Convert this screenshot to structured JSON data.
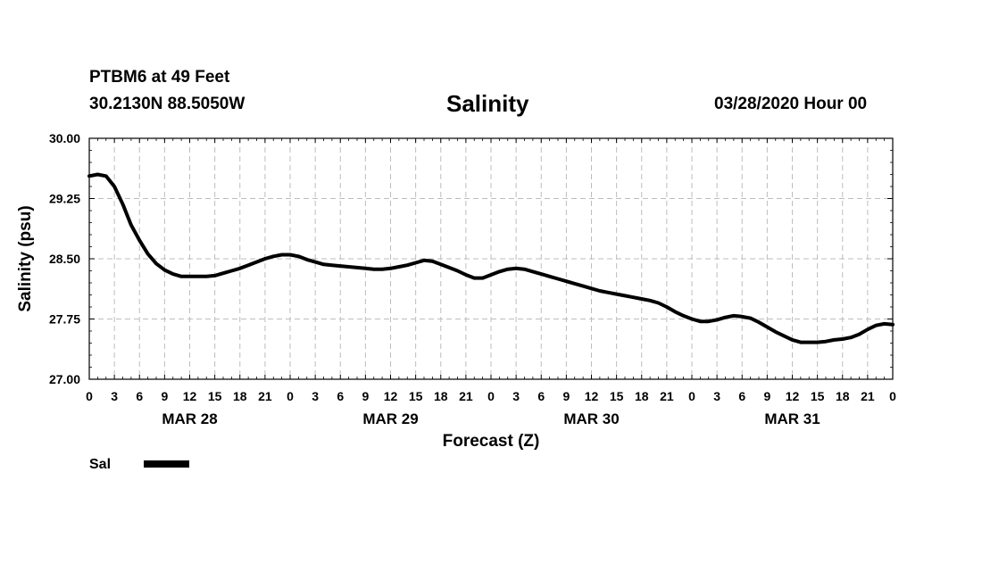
{
  "header": {
    "station": "PTBM6 at 49 Feet",
    "coordinates": "30.2130N 88.5050W",
    "title": "Salinity",
    "datetime": "03/28/2020 Hour 00"
  },
  "chart_data": {
    "type": "line",
    "title": "Salinity",
    "xlabel": "Forecast (Z)",
    "ylabel": "Salinity (psu)",
    "ylim": [
      27.0,
      30.0
    ],
    "yticks": [
      "30.00",
      "29.25",
      "28.50",
      "27.75",
      "27.00"
    ],
    "xlim": [
      0,
      96
    ],
    "xticks": [
      "0",
      "3",
      "6",
      "9",
      "12",
      "15",
      "18",
      "21",
      "0",
      "3",
      "6",
      "9",
      "12",
      "15",
      "18",
      "21",
      "0",
      "3",
      "6",
      "9",
      "12",
      "15",
      "18",
      "21",
      "0",
      "3",
      "6",
      "9",
      "12",
      "15",
      "18",
      "21",
      "0"
    ],
    "day_labels": [
      "MAR 28",
      "MAR 29",
      "MAR 30",
      "MAR 31"
    ],
    "grid": true,
    "legend": {
      "position": "bottom-left",
      "entries": [
        "Sal"
      ]
    },
    "series": [
      {
        "name": "Sal",
        "color": "#000000",
        "x": [
          0,
          1,
          2,
          3,
          4,
          5,
          6,
          7,
          8,
          9,
          10,
          11,
          12,
          13,
          14,
          15,
          16,
          17,
          18,
          19,
          20,
          21,
          22,
          23,
          24,
          25,
          26,
          27,
          28,
          29,
          30,
          31,
          32,
          33,
          34,
          35,
          36,
          37,
          38,
          39,
          40,
          41,
          42,
          43,
          44,
          45,
          46,
          47,
          48,
          49,
          50,
          51,
          52,
          53,
          54,
          55,
          56,
          57,
          58,
          59,
          60,
          61,
          62,
          63,
          64,
          65,
          66,
          67,
          68,
          69,
          70,
          71,
          72,
          73,
          74,
          75,
          76,
          77,
          78,
          79,
          80,
          81,
          82,
          83,
          84,
          85,
          86,
          87,
          88,
          89,
          90,
          91,
          92,
          93,
          94,
          95,
          96
        ],
        "values": [
          29.53,
          29.55,
          29.53,
          29.4,
          29.18,
          28.92,
          28.73,
          28.56,
          28.44,
          28.36,
          28.31,
          28.28,
          28.28,
          28.28,
          28.28,
          28.29,
          28.32,
          28.35,
          28.38,
          28.42,
          28.46,
          28.5,
          28.53,
          28.55,
          28.55,
          28.53,
          28.49,
          28.46,
          28.43,
          28.42,
          28.41,
          28.4,
          28.39,
          28.38,
          28.37,
          28.37,
          28.38,
          28.4,
          28.42,
          28.45,
          28.48,
          28.47,
          28.43,
          28.39,
          28.35,
          28.3,
          28.26,
          28.26,
          28.3,
          28.34,
          28.37,
          28.38,
          28.37,
          28.34,
          28.31,
          28.28,
          28.25,
          28.22,
          28.19,
          28.16,
          28.13,
          28.1,
          28.08,
          28.06,
          28.04,
          28.02,
          28.0,
          27.98,
          27.95,
          27.9,
          27.84,
          27.79,
          27.75,
          27.72,
          27.72,
          27.74,
          27.77,
          27.79,
          27.78,
          27.76,
          27.71,
          27.65,
          27.59,
          27.54,
          27.49,
          27.46,
          27.46,
          27.46,
          27.47,
          27.49,
          27.5,
          27.52,
          27.56,
          27.62,
          27.67,
          27.69,
          27.68
        ]
      }
    ]
  }
}
